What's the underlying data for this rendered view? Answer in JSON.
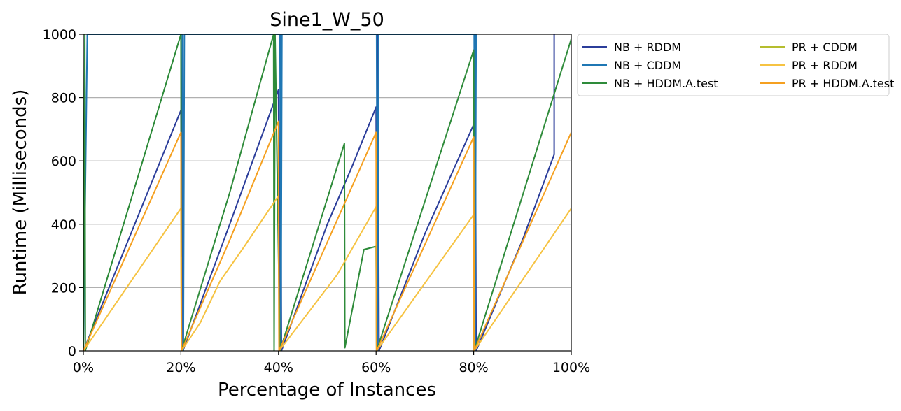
{
  "chart_data": {
    "type": "line",
    "title": "Sine1_W_50",
    "xlabel": "Percentage of Instances",
    "ylabel": "Runtime (Milliseconds)",
    "xlim": [
      0,
      100
    ],
    "ylim": [
      0,
      1000
    ],
    "x_ticks": [
      "0%",
      "20%",
      "40%",
      "60%",
      "80%",
      "100%"
    ],
    "y_ticks": [
      "0",
      "200",
      "400",
      "600",
      "800",
      "1000"
    ],
    "grid": "horizontal",
    "legend_position": "outside-right",
    "series": [
      {
        "name": "NB + RDDM",
        "color": "#2b3d9a",
        "points": [
          [
            0,
            0
          ],
          [
            20,
            760
          ],
          [
            20.1,
            300
          ],
          [
            20.3,
            1000
          ],
          [
            20.4,
            0
          ],
          [
            24,
            150
          ],
          [
            30,
            400
          ],
          [
            34,
            570
          ],
          [
            40,
            825
          ],
          [
            40.2,
            0
          ],
          [
            40.4,
            1000
          ],
          [
            40.6,
            0
          ],
          [
            50,
            400
          ],
          [
            55,
            580
          ],
          [
            60,
            770
          ],
          [
            60.2,
            0
          ],
          [
            60.4,
            1000
          ],
          [
            60.6,
            0
          ],
          [
            70,
            370
          ],
          [
            80,
            715
          ],
          [
            80.1,
            0
          ],
          [
            80.3,
            1000
          ],
          [
            80.5,
            0
          ],
          [
            90,
            350
          ],
          [
            96.5,
            620
          ],
          [
            96.5,
            1000
          ]
        ]
      },
      {
        "name": "NB + CDDM",
        "color": "#1f77b4",
        "points": [
          [
            0,
            0
          ],
          [
            0.8,
            1000
          ],
          [
            0.9,
            1000
          ],
          [
            20.3,
            1000
          ],
          [
            20.5,
            0
          ],
          [
            20.7,
            1000
          ],
          [
            40.3,
            1000
          ],
          [
            40.5,
            0
          ],
          [
            40.7,
            1000
          ],
          [
            60.1,
            1000
          ],
          [
            60.3,
            0
          ],
          [
            60.5,
            1000
          ],
          [
            80.1,
            1000
          ],
          [
            80.3,
            0
          ],
          [
            80.5,
            1000
          ]
        ]
      },
      {
        "name": "NB + HDDM.A.test",
        "color": "#2e8b3a",
        "points": [
          [
            0,
            0
          ],
          [
            0.3,
            1000
          ],
          [
            0.4,
            0
          ],
          [
            20,
            1000
          ],
          [
            20.1,
            0
          ],
          [
            30,
            500
          ],
          [
            39,
            1000
          ],
          [
            39.1,
            0
          ],
          [
            39.3,
            1000
          ],
          [
            40.3,
            0
          ],
          [
            53.5,
            655
          ],
          [
            53.6,
            10
          ],
          [
            57.5,
            320
          ],
          [
            60,
            330
          ],
          [
            60.1,
            0
          ],
          [
            80,
            950
          ],
          [
            80.1,
            0
          ],
          [
            100,
            985
          ]
        ]
      },
      {
        "name": "PR + CDDM",
        "color": "#b5bd2e",
        "points": []
      },
      {
        "name": "PR + RDDM",
        "color": "#f6c342",
        "points": [
          [
            0,
            0
          ],
          [
            20,
            450
          ],
          [
            20.1,
            0
          ],
          [
            24,
            90
          ],
          [
            28,
            220
          ],
          [
            33,
            330
          ],
          [
            40,
            490
          ],
          [
            40.1,
            0
          ],
          [
            52,
            240
          ],
          [
            60,
            455
          ],
          [
            60.1,
            0
          ],
          [
            80,
            430
          ],
          [
            80.1,
            0
          ],
          [
            100,
            450
          ]
        ]
      },
      {
        "name": "PR + HDDM.A.test",
        "color": "#f5a020",
        "points": [
          [
            0,
            0
          ],
          [
            20,
            690
          ],
          [
            20.1,
            0
          ],
          [
            30,
            350
          ],
          [
            40,
            725
          ],
          [
            40.1,
            0
          ],
          [
            60,
            690
          ],
          [
            60.1,
            0
          ],
          [
            80,
            675
          ],
          [
            80.1,
            0
          ],
          [
            100,
            690
          ]
        ]
      }
    ]
  }
}
